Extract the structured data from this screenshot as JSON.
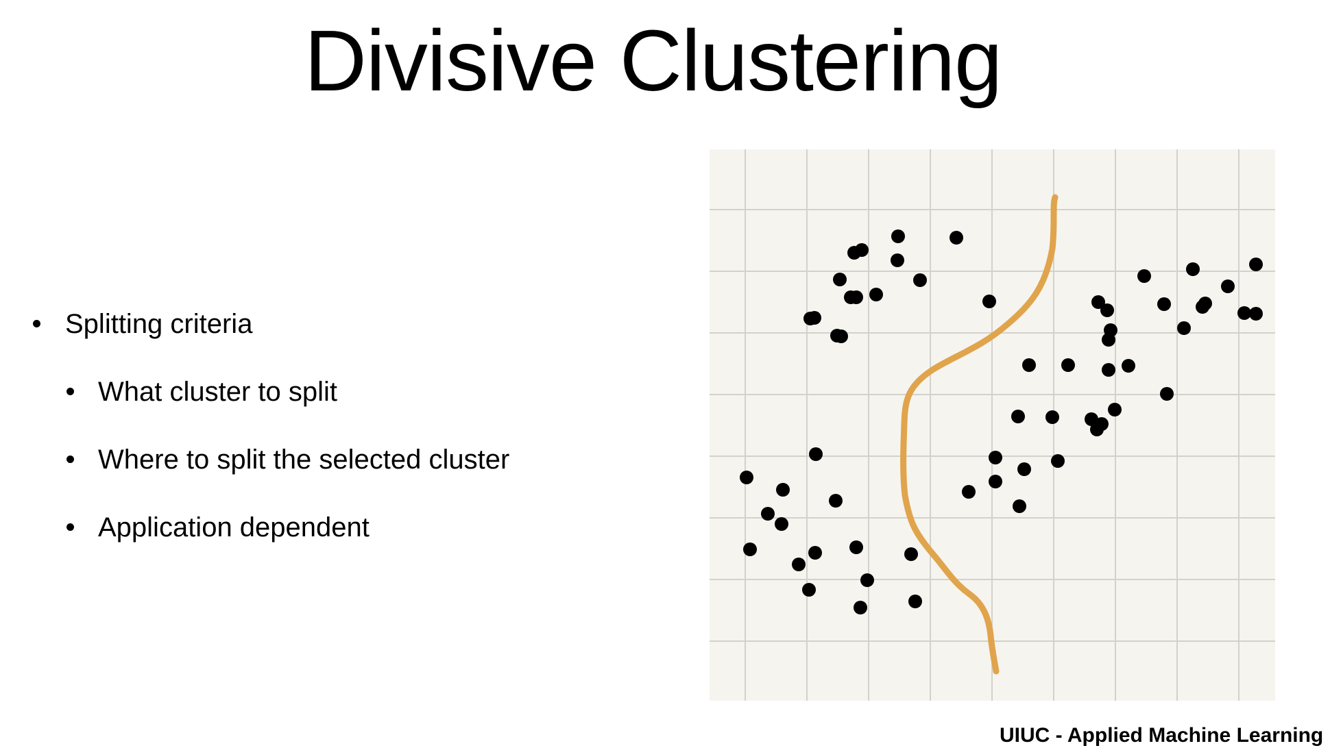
{
  "slide": {
    "title": "Divisive Clustering",
    "bullets": [
      {
        "text": "Splitting criteria",
        "level": 1
      },
      {
        "text": "What cluster to split",
        "level": 2
      },
      {
        "text": "Where to split the selected cluster",
        "level": 2
      },
      {
        "text": "Application dependent",
        "level": 2
      }
    ],
    "footer": "UIUC - Applied Machine Learning"
  },
  "figure": {
    "background_color": "#f6f4ef",
    "grid_color": "#d3d1cc",
    "point_color": "#000000",
    "split_curve_color": "#e0a44c",
    "point_count": 67
  }
}
